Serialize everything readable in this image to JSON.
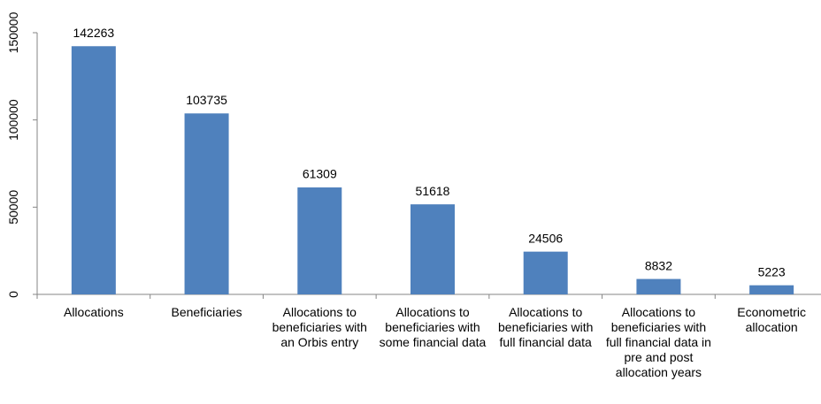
{
  "chart_data": {
    "type": "bar",
    "categories": [
      "Allocations",
      "Beneficiaries",
      "Allocations to beneficiaries with an Orbis entry",
      "Allocations to beneficiaries with some financial data",
      "Allocations to beneficiaries with full financial data",
      "Allocations to beneficiaries with full financial data in pre and post allocation years",
      "Econometric allocation"
    ],
    "values": [
      142263,
      103735,
      61309,
      51618,
      24506,
      8832,
      5223
    ],
    "color": "#4f81bd",
    "ylim": [
      0,
      150000
    ],
    "yticks": [
      0,
      50000,
      100000,
      150000
    ],
    "grid": false
  }
}
